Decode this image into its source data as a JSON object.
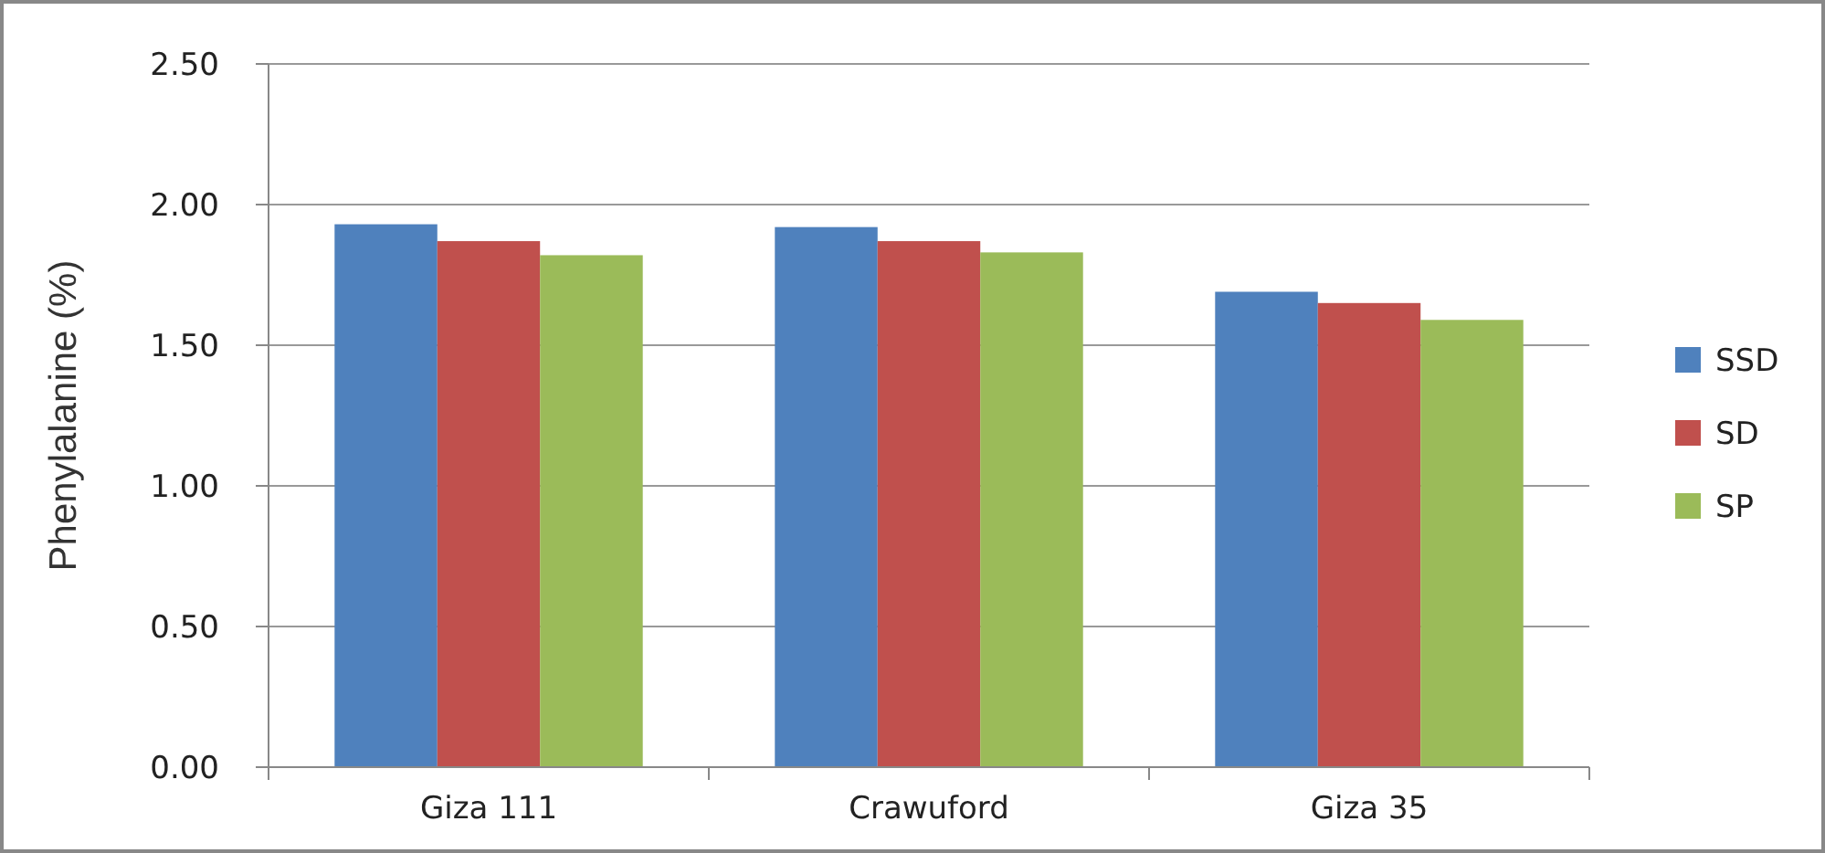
{
  "chart_data": {
    "type": "bar",
    "ylabel": "Phenylalanine (%)",
    "categories": [
      "Giza 111",
      "Crawuford",
      "Giza 35"
    ],
    "series": [
      {
        "name": "SSD",
        "color": "#4f81bd",
        "values": [
          1.93,
          1.92,
          1.69
        ]
      },
      {
        "name": "SD",
        "color": "#c0504d",
        "values": [
          1.87,
          1.87,
          1.65
        ]
      },
      {
        "name": "SP",
        "color": "#9bbb59",
        "values": [
          1.82,
          1.83,
          1.59
        ]
      }
    ],
    "ylim": [
      0,
      2.5
    ],
    "yticks": [
      {
        "value": 0,
        "label": "0.00"
      },
      {
        "value": 0.5,
        "label": "0.50"
      },
      {
        "value": 1,
        "label": "1.00"
      },
      {
        "value": 1.5,
        "label": "1.50"
      },
      {
        "value": 2,
        "label": "2.00"
      },
      {
        "value": 2.5,
        "label": "2.50"
      }
    ],
    "grid": "y",
    "legend": "right"
  }
}
